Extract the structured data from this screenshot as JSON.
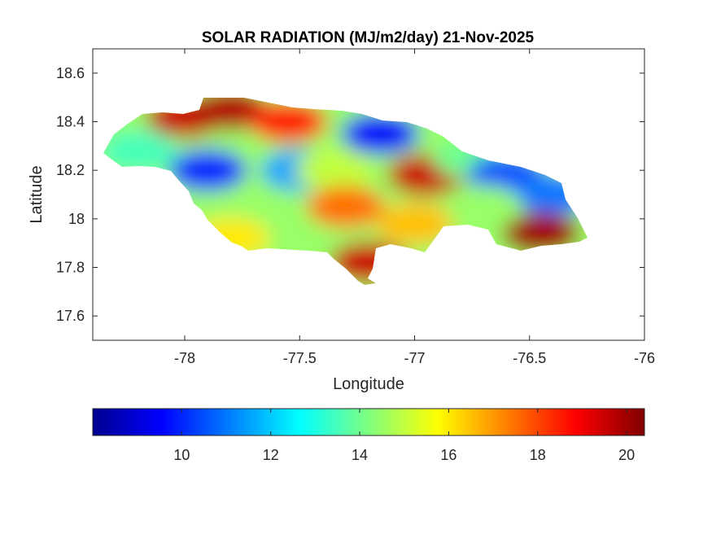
{
  "chart_data": {
    "type": "heatmap",
    "title": "SOLAR RADIATION (MJ/m2/day) 21-Nov-2025",
    "xlabel": "Longitude",
    "ylabel": "Latitude",
    "xlim": [
      -78.4,
      -76
    ],
    "ylim": [
      17.5,
      18.7
    ],
    "xticks": [
      -78,
      -77.5,
      -77,
      -76.5,
      -76
    ],
    "xtick_labels": [
      "-78",
      "-77.5",
      "-77",
      "-76.5",
      "-76"
    ],
    "yticks": [
      17.6,
      17.8,
      18,
      18.2,
      18.4,
      18.6
    ],
    "ytick_labels": [
      "17.6",
      "17.8",
      "18",
      "18.2",
      "18.4",
      "18.6"
    ],
    "grid": false,
    "colormap": "jet",
    "colorbar": {
      "location": "below",
      "clim": [
        8,
        20.4
      ],
      "ticks": [
        10,
        12,
        14,
        16,
        18,
        20
      ],
      "tick_labels": [
        "10",
        "12",
        "14",
        "16",
        "18",
        "20"
      ]
    },
    "value_range": [
      8,
      20.4
    ],
    "regions": [
      {
        "lon": -78.0,
        "lat": 18.42,
        "value": 19.5
      },
      {
        "lon": -77.8,
        "lat": 18.45,
        "value": 19.8
      },
      {
        "lon": -77.55,
        "lat": 18.4,
        "value": 18.5
      },
      {
        "lon": -77.15,
        "lat": 18.35,
        "value": 9.5
      },
      {
        "lon": -77.9,
        "lat": 18.2,
        "value": 10.0
      },
      {
        "lon": -78.2,
        "lat": 18.28,
        "value": 13.5
      },
      {
        "lon": -77.5,
        "lat": 18.2,
        "value": 11.5
      },
      {
        "lon": -77.35,
        "lat": 18.2,
        "value": 15.0
      },
      {
        "lon": -76.95,
        "lat": 18.18,
        "value": 19.5
      },
      {
        "lon": -76.75,
        "lat": 18.25,
        "value": 14.0
      },
      {
        "lon": -76.6,
        "lat": 18.18,
        "value": 10.5
      },
      {
        "lon": -76.4,
        "lat": 18.1,
        "value": 11.0
      },
      {
        "lon": -77.7,
        "lat": 18.0,
        "value": 14.5
      },
      {
        "lon": -77.3,
        "lat": 18.05,
        "value": 17.5
      },
      {
        "lon": -77.0,
        "lat": 17.98,
        "value": 16.5
      },
      {
        "lon": -77.8,
        "lat": 17.92,
        "value": 16.0
      },
      {
        "lon": -77.2,
        "lat": 17.82,
        "value": 19.5
      },
      {
        "lon": -76.45,
        "lat": 17.94,
        "value": 20.0
      },
      {
        "lon": -76.7,
        "lat": 18.05,
        "value": 14.5
      }
    ]
  }
}
